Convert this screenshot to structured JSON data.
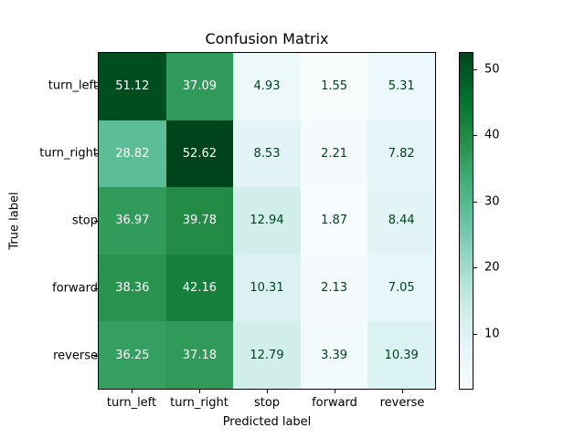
{
  "chart_data": {
    "type": "heatmap",
    "title": "Confusion Matrix",
    "xlabel": "Predicted label",
    "ylabel": "True label",
    "x_categories": [
      "turn_left",
      "turn_right",
      "stop",
      "forward",
      "reverse"
    ],
    "y_categories": [
      "turn_left",
      "turn_right",
      "stop",
      "forward",
      "reverse"
    ],
    "values": [
      [
        51.12,
        37.09,
        4.93,
        1.55,
        5.31
      ],
      [
        28.82,
        52.62,
        8.53,
        2.21,
        7.82
      ],
      [
        36.97,
        39.78,
        12.94,
        1.87,
        8.44
      ],
      [
        38.36,
        42.16,
        10.31,
        2.13,
        7.05
      ],
      [
        36.25,
        37.18,
        12.79,
        3.39,
        10.39
      ]
    ],
    "colorbar": {
      "colormap": "BuGn",
      "ticks": [
        10,
        20,
        30,
        40,
        50
      ],
      "range": [
        1.55,
        52.62
      ]
    },
    "text_colors": {
      "light": "#ffffff",
      "dark": "#00441b"
    },
    "threshold": 27.09
  },
  "title": "Confusion Matrix",
  "xlabel": "Predicted label",
  "ylabel": "True label",
  "xticks": [
    "turn_left",
    "turn_right",
    "stop",
    "forward",
    "reverse"
  ],
  "yticks": [
    "turn_left",
    "turn_right",
    "stop",
    "forward",
    "reverse"
  ],
  "cbar_ticks": [
    "10",
    "20",
    "30",
    "40",
    "50"
  ]
}
